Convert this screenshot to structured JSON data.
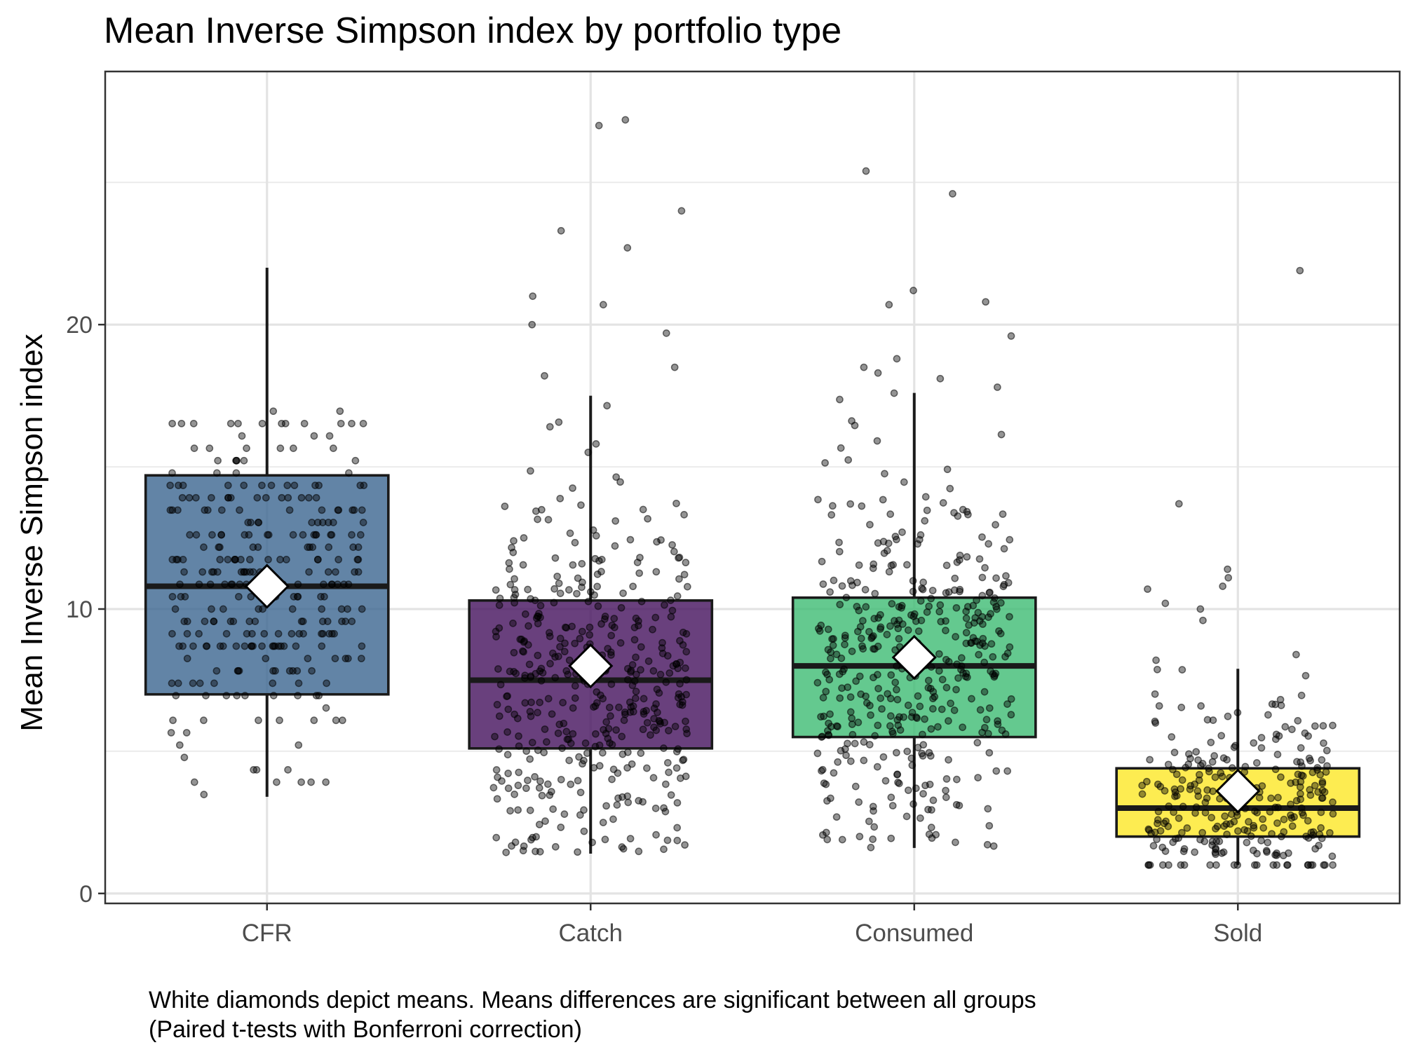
{
  "chart_data": {
    "type": "box",
    "title": "Mean Inverse Simpson index by portfolio type",
    "xlabel": "",
    "ylabel": "Mean Inverse Simpson index",
    "ylim": [
      -0.35,
      28.9
    ],
    "yticks": [
      0,
      10,
      20
    ],
    "grid": true,
    "legend": "none",
    "caption": [
      "White diamonds depict means. Means differences are significant between all groups",
      "(Paired t-tests with Bonferroni correction)"
    ],
    "categories": [
      "CFR",
      "Catch",
      "Consumed",
      "Sold"
    ],
    "series": [
      {
        "category": "CFR",
        "color": "#3b6590",
        "whisker_low": 3.4,
        "q1": 7.0,
        "median": 10.8,
        "q3": 14.7,
        "whisker_high": 22.0,
        "mean": 10.8,
        "outliers": []
      },
      {
        "category": "Catch",
        "color": "#43105d",
        "whisker_low": 1.4,
        "q1": 5.1,
        "median": 7.5,
        "q3": 10.3,
        "whisker_high": 17.5,
        "mean": 8.0,
        "outliers": [
          18.2,
          18.5,
          19.7,
          20.0,
          20.7,
          21.0,
          22.7,
          23.3,
          24.0,
          27.0,
          27.2
        ]
      },
      {
        "category": "Consumed",
        "color": "#3dbb73",
        "whisker_low": 1.6,
        "q1": 5.5,
        "median": 8.0,
        "q3": 10.4,
        "whisker_high": 17.6,
        "mean": 8.3,
        "outliers": [
          17.8,
          18.1,
          18.3,
          18.5,
          18.8,
          19.6,
          20.7,
          20.8,
          21.2,
          24.6,
          25.4
        ]
      },
      {
        "category": "Sold",
        "color": "#fde725",
        "whisker_low": 1.0,
        "q1": 2.0,
        "median": 3.0,
        "q3": 4.4,
        "whisker_high": 7.9,
        "mean": 3.6,
        "outliers": [
          8.2,
          8.4,
          9.6,
          10.0,
          10.2,
          10.7,
          10.8,
          11.1,
          11.4,
          13.7,
          21.9
        ]
      }
    ]
  }
}
